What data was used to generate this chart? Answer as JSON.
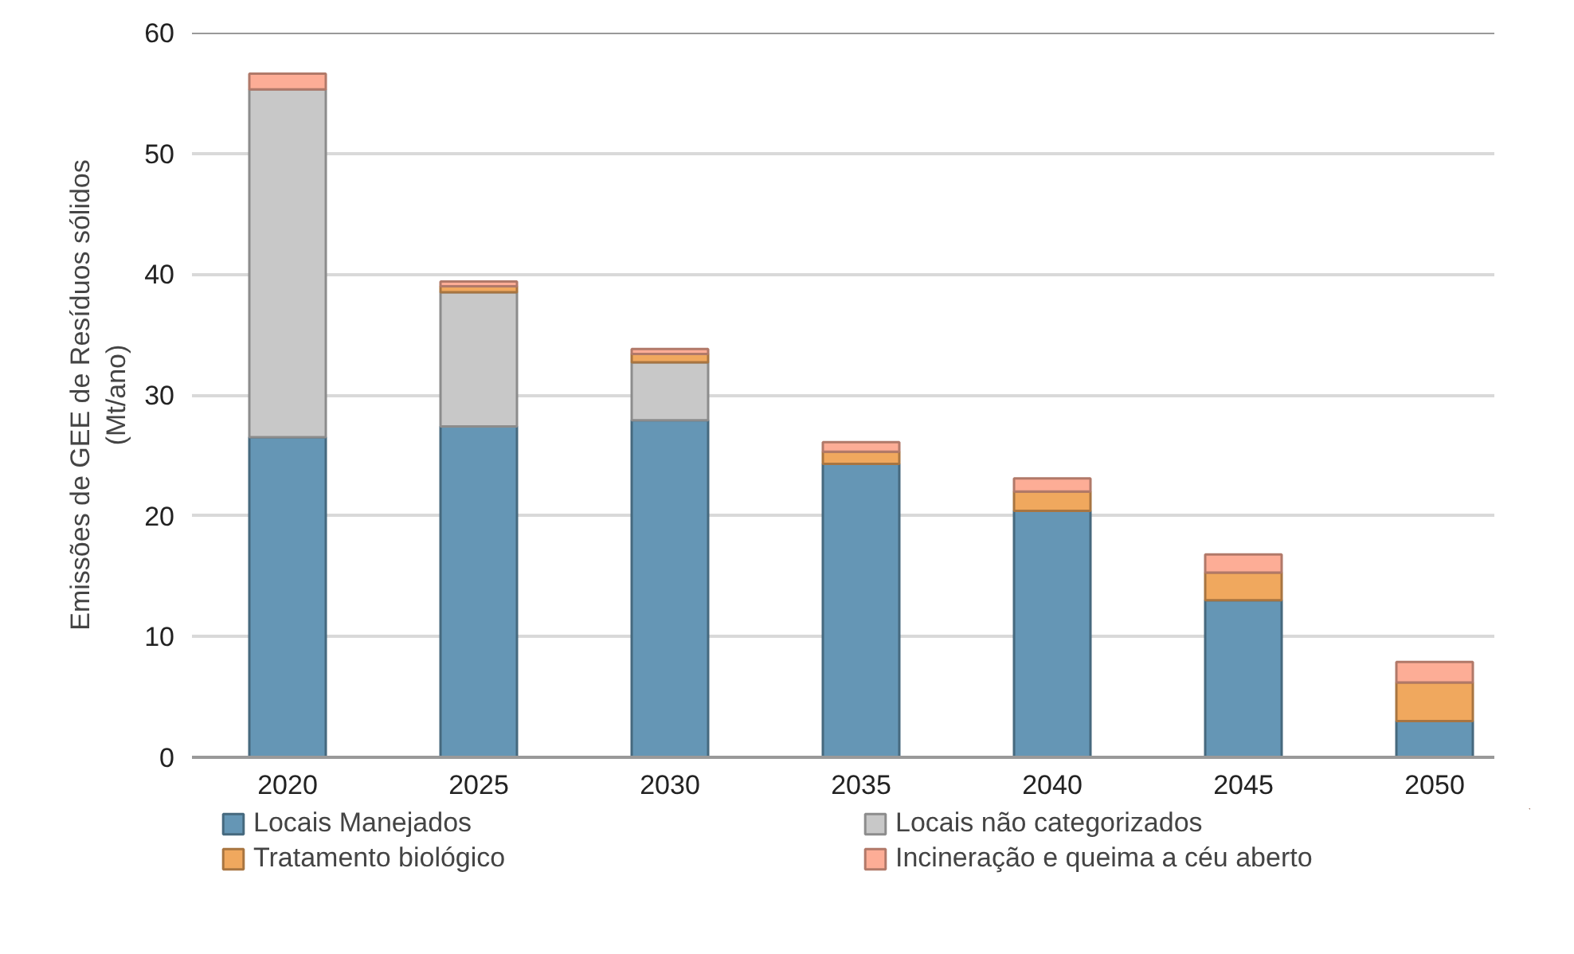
{
  "chart_data": {
    "type": "bar",
    "stacked": true,
    "ylabel": "Emissões de GEE de Resíduos sólidos\n(Mt/ano)",
    "categories": [
      "2020",
      "2025",
      "2030",
      "2035",
      "2040",
      "2045",
      "2050"
    ],
    "series": [
      {
        "name": "Locais Manejados",
        "color": "#6596b5",
        "values": [
          26.5,
          27.4,
          27.9,
          24.3,
          20.4,
          13.0,
          3.0
        ]
      },
      {
        "name": "Locais não categorizados",
        "color": "#c8c8c8",
        "values": [
          28.8,
          11.1,
          4.8,
          null,
          null,
          null,
          null
        ]
      },
      {
        "name": "Tratamento biológico",
        "color": "#f0a85e",
        "values": [
          null,
          0.5,
          0.7,
          1.0,
          1.6,
          2.3,
          3.2
        ]
      },
      {
        "name": "Incineração e queima a céu aberto",
        "color": "#fdad96",
        "values": [
          1.3,
          0.4,
          0.4,
          0.8,
          1.1,
          1.5,
          1.7
        ]
      }
    ],
    "ylim": [
      0,
      60
    ],
    "yticks": [
      0,
      10,
      20,
      30,
      40,
      50,
      60
    ],
    "grid": "y",
    "legend": "bottom"
  }
}
